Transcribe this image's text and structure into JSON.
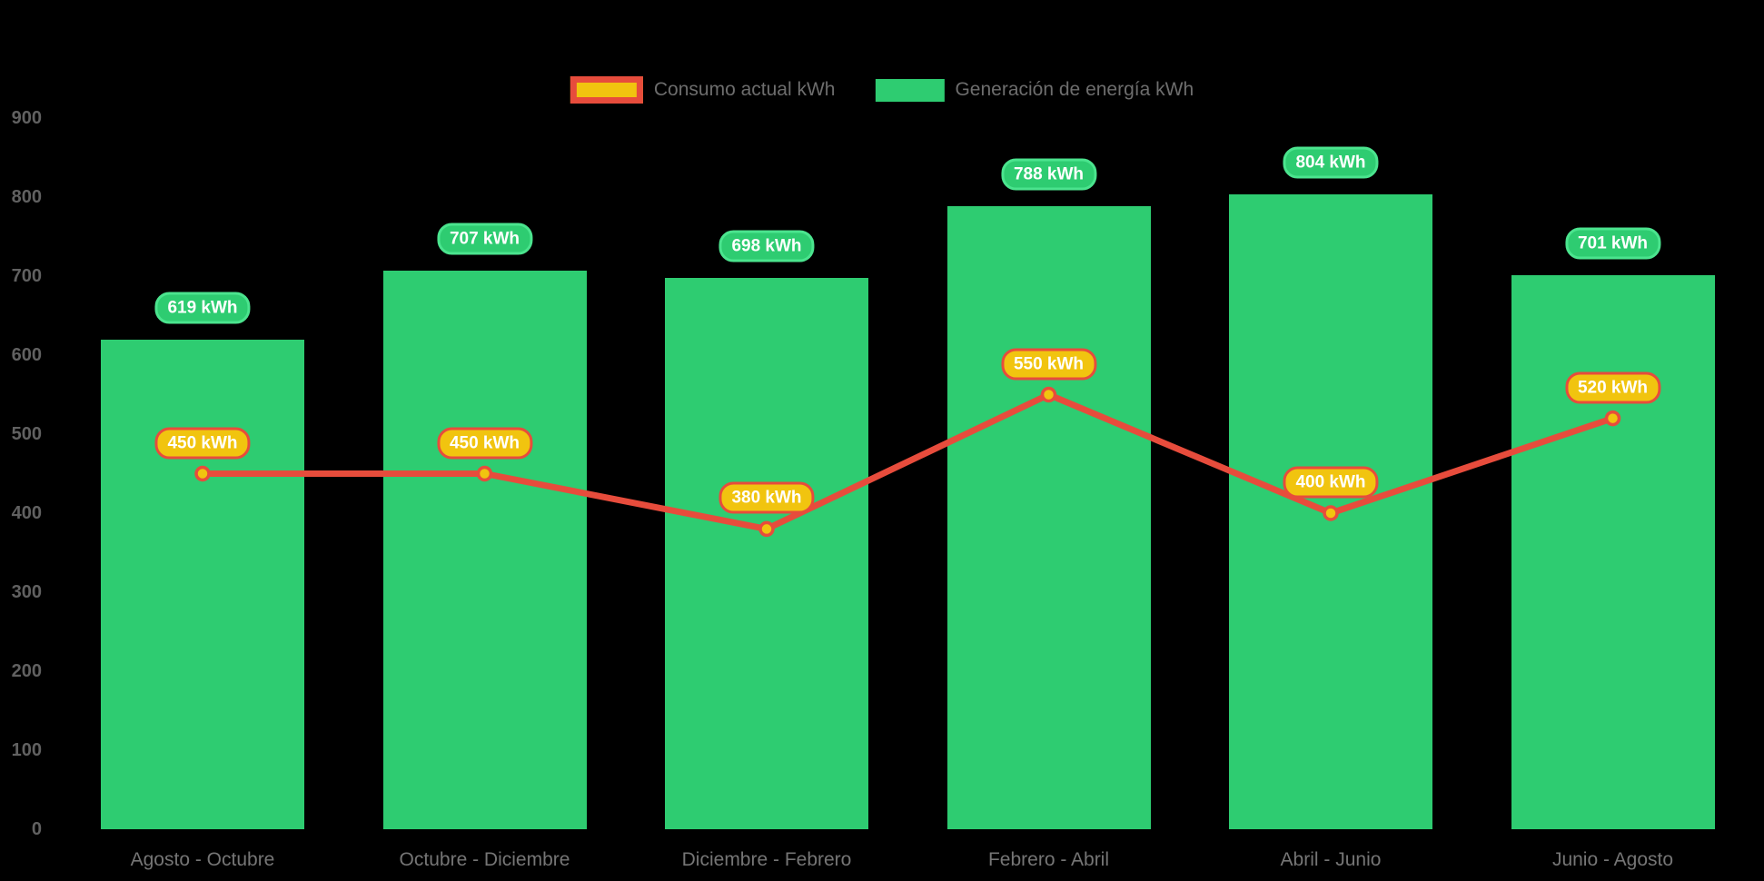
{
  "background_color": "#000000",
  "legend": {
    "position": "top",
    "text_color": "#6d6d6d",
    "items": [
      {
        "label": "Consumo actual kWh",
        "series": "line"
      },
      {
        "label": "Generación de energía kWh",
        "series": "bar"
      }
    ]
  },
  "chart_data": {
    "type": "combo",
    "title": "",
    "categories": [
      "Agosto - Octubre",
      "Octubre - Diciembre",
      "Diciembre - Febrero",
      "Febrero - Abril",
      "Abril - Junio",
      "Junio - Agosto"
    ],
    "series": [
      {
        "name": "Generación de energía kWh",
        "type": "bar",
        "values": [
          619,
          707,
          698,
          788,
          804,
          701
        ],
        "color": "#2ecc71",
        "data_label": {
          "suffix": " kWh",
          "fill": "#2ecc71",
          "border": "#4be48e",
          "text_color": "#ffffff"
        }
      },
      {
        "name": "Consumo actual kWh",
        "type": "line",
        "values": [
          450,
          450,
          380,
          550,
          400,
          520
        ],
        "color": "#e74c3c",
        "point_fill": "#f1c40f",
        "point_border": "#e74c3c",
        "data_label": {
          "suffix": " kWh",
          "fill": "#f1c40f",
          "border": "#e74c3c",
          "text_color": "#ffffff"
        }
      }
    ],
    "ylim": [
      0,
      900
    ],
    "ytick_step": 100,
    "yticks": [
      0,
      100,
      200,
      300,
      400,
      500,
      600,
      700,
      800,
      900
    ],
    "grid": false,
    "axis_text_color_y": "#616161",
    "axis_text_color_x": "#757575",
    "legend_position": "top"
  }
}
